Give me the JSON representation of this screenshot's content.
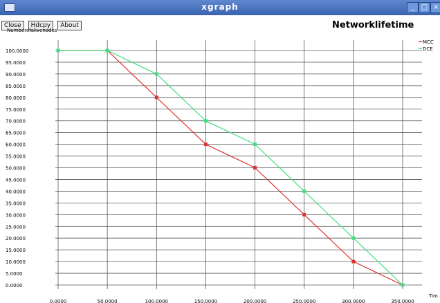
{
  "window": {
    "title": "xgraph",
    "minimize_label": "_",
    "maximize_label": "□",
    "close_label": "×"
  },
  "toolbar": {
    "close_label": "Close",
    "hdcpy_label": "Hdcpy",
    "about_label": "About"
  },
  "chart_data": {
    "type": "line",
    "title": "Networklifetime",
    "ylabel": "Numberofalivenodes",
    "xlabel": "Tim",
    "xlim": [
      0,
      350
    ],
    "ylim": [
      0,
      100
    ],
    "grid": true,
    "legend_position": "top-right",
    "x_ticks": [
      "0.0000",
      "50.0000",
      "100.0000",
      "150.0000",
      "200.0000",
      "250.0000",
      "300.0000",
      "350.0000"
    ],
    "y_ticks": [
      "0.0000",
      "5.0000",
      "10.0000",
      "15.0000",
      "20.0000",
      "25.0000",
      "30.0000",
      "35.0000",
      "40.0000",
      "45.0000",
      "50.0000",
      "55.0000",
      "60.0000",
      "65.0000",
      "70.0000",
      "75.0000",
      "80.0000",
      "85.0000",
      "90.0000",
      "95.0000",
      "100.0000"
    ],
    "series": [
      {
        "name": "MCC",
        "color": "#e03030",
        "x": [
          0,
          50,
          100,
          150,
          200,
          250,
          300,
          350
        ],
        "y": [
          100,
          100,
          80,
          60,
          50,
          30,
          10,
          0
        ]
      },
      {
        "name": "DCE",
        "color": "#40e080",
        "x": [
          0,
          50,
          100,
          150,
          200,
          250,
          300,
          350
        ],
        "y": [
          100,
          100,
          90,
          70,
          60,
          40,
          20,
          0
        ]
      }
    ]
  }
}
